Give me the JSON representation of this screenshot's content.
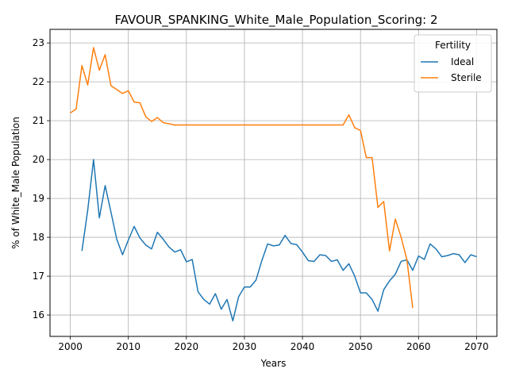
{
  "chart_data": {
    "type": "line",
    "title": "FAVOUR_SPANKING_White_Male_Population_Scoring: 2",
    "xlabel": "Years",
    "ylabel": "% of White_Male Population",
    "xlim": [
      1996.5,
      2073.5
    ],
    "ylim": [
      15.45,
      23.35
    ],
    "xticks": [
      2000,
      2010,
      2020,
      2030,
      2040,
      2050,
      2060,
      2070
    ],
    "yticks": [
      16,
      17,
      18,
      19,
      20,
      21,
      22,
      23
    ],
    "grid": true,
    "legend": {
      "title": "Fertility",
      "placement": "top-right"
    },
    "series": [
      {
        "name": "Ideal",
        "color": "#1f77b4",
        "x": [
          2002,
          2003,
          2004,
          2005,
          2006,
          2007,
          2008,
          2009,
          2010,
          2011,
          2012,
          2013,
          2014,
          2015,
          2016,
          2017,
          2018,
          2019,
          2020,
          2021,
          2022,
          2023,
          2024,
          2025,
          2026,
          2027,
          2028,
          2029,
          2030,
          2031,
          2032,
          2033,
          2034,
          2035,
          2036,
          2037,
          2038,
          2039,
          2040,
          2041,
          2042,
          2043,
          2044,
          2045,
          2046,
          2047,
          2048,
          2049,
          2050,
          2051,
          2052,
          2053,
          2054,
          2055,
          2056,
          2057,
          2058,
          2059,
          2060,
          2061,
          2062,
          2063,
          2064,
          2065,
          2066,
          2067,
          2068,
          2069,
          2070
        ],
        "y": [
          17.65,
          18.7,
          20.0,
          18.5,
          19.33,
          18.65,
          17.95,
          17.55,
          17.93,
          18.28,
          17.98,
          17.8,
          17.7,
          18.13,
          17.95,
          17.75,
          17.62,
          17.68,
          17.37,
          17.43,
          16.6,
          16.4,
          16.28,
          16.55,
          16.15,
          16.4,
          15.85,
          16.47,
          16.72,
          16.72,
          16.9,
          17.4,
          17.83,
          17.78,
          17.8,
          18.05,
          17.84,
          17.81,
          17.62,
          17.4,
          17.38,
          17.55,
          17.53,
          17.38,
          17.42,
          17.15,
          17.32,
          17.0,
          16.57,
          16.57,
          16.4,
          16.1,
          16.65,
          16.88,
          17.05,
          17.38,
          17.42,
          17.15,
          17.52,
          17.43,
          17.83,
          17.7,
          17.5,
          17.53,
          17.58,
          17.55,
          17.35,
          17.55,
          17.5
        ]
      },
      {
        "name": "Sterile",
        "color": "#ff7f0e",
        "x": [
          2000,
          2001,
          2002,
          2003,
          2004,
          2005,
          2006,
          2007,
          2008,
          2009,
          2010,
          2011,
          2012,
          2013,
          2014,
          2015,
          2016,
          2017,
          2018,
          2019,
          2020,
          2021,
          2022,
          2023,
          2024,
          2025,
          2026,
          2027,
          2028,
          2029,
          2030,
          2031,
          2032,
          2033,
          2034,
          2035,
          2036,
          2037,
          2038,
          2039,
          2040,
          2041,
          2042,
          2043,
          2044,
          2045,
          2046,
          2047,
          2048,
          2049,
          2050,
          2051,
          2052,
          2053,
          2054,
          2055,
          2056,
          2057,
          2058,
          2059
        ],
        "y": [
          21.2,
          21.3,
          22.42,
          21.92,
          22.88,
          22.3,
          22.7,
          21.9,
          21.8,
          21.7,
          21.77,
          21.48,
          21.46,
          21.1,
          20.98,
          21.08,
          20.95,
          20.92,
          20.89,
          20.89,
          20.89,
          20.89,
          20.89,
          20.89,
          20.89,
          20.89,
          20.89,
          20.89,
          20.89,
          20.89,
          20.89,
          20.89,
          20.89,
          20.89,
          20.89,
          20.89,
          20.89,
          20.89,
          20.89,
          20.89,
          20.89,
          20.89,
          20.89,
          20.89,
          20.89,
          20.89,
          20.89,
          20.89,
          21.15,
          20.82,
          20.75,
          20.05,
          20.05,
          18.77,
          18.92,
          17.65,
          18.47,
          18.0,
          17.42,
          16.18
        ]
      }
    ]
  }
}
